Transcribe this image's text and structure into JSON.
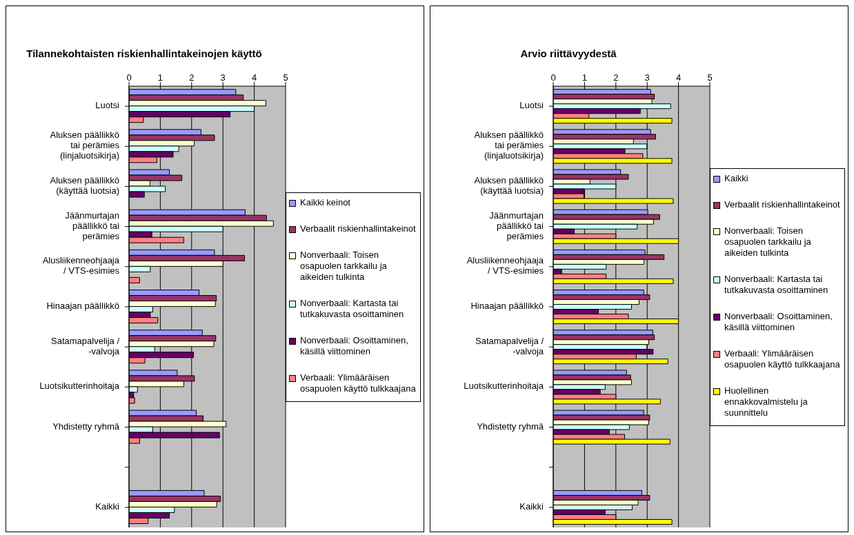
{
  "chart_data": [
    {
      "type": "bar",
      "orientation": "horizontal",
      "title": "Tilannekohtaisten riskienhallintakeinojen käyttö",
      "categories": [
        "Luotsi",
        "Aluksen päällikkö tai perämies (linjaluotsikirja)",
        "Aluksen päällikkö (käyttää luotsia)",
        "Jäänmurtajan päällikkö tai perämies",
        "Alusliikenneohjaaja / VTS-esimies",
        "Hinaajan päällikkö",
        "Satamapalvelija / -valvoja",
        "Luotsikutterinhoitaja",
        "Yhdistetty ryhmä",
        null,
        "Kaikki"
      ],
      "xlim": [
        0,
        5
      ],
      "xticks": [
        0,
        1,
        2,
        3,
        4,
        5
      ],
      "grid": "x",
      "legend": "right",
      "series": [
        {
          "name": "Kaikki keinot",
          "color": "#9999ff",
          "values": [
            3.41,
            2.3,
            1.29,
            3.71,
            2.73,
            2.24,
            2.34,
            1.54,
            2.15,
            null,
            2.4
          ]
        },
        {
          "name": "Verbaalit riskienhallintakeinot",
          "color": "#993366",
          "values": [
            3.65,
            2.73,
            1.69,
            4.39,
            3.69,
            2.79,
            2.77,
            2.09,
            2.37,
            null,
            2.92
          ]
        },
        {
          "name": "Nonverbaali: Toisen osapuolen tarkkailu ja aikeiden tulkinta",
          "color": "#ffffcc",
          "values": [
            4.37,
            2.08,
            0.67,
            4.61,
            3.0,
            2.76,
            2.71,
            1.75,
            3.1,
            null,
            2.8
          ]
        },
        {
          "name": "Nonverbaali: Kartasta tai tutkakuvasta osoittaminen",
          "color": "#ccffff",
          "values": [
            4.0,
            1.59,
            1.16,
            3.0,
            0.68,
            0.76,
            0.82,
            0.27,
            0.76,
            null,
            1.45
          ]
        },
        {
          "name": "Nonverbaali: Osoittaminen, käsillä viittominen",
          "color": "#660066",
          "values": [
            3.23,
            1.41,
            0.49,
            0.73,
            0,
            0.68,
            2.06,
            0.15,
            2.89,
            null,
            1.29
          ]
        },
        {
          "name": "Verbaali: Ylimääräisen osapuolen käyttö tulkkaajana",
          "color": "#ff8080",
          "values": [
            0.46,
            0.89,
            0,
            1.75,
            0.34,
            0.92,
            0.51,
            0.18,
            0.34,
            null,
            0.61
          ]
        }
      ]
    },
    {
      "type": "bar",
      "orientation": "horizontal",
      "title": "Arvio riittävyydestä",
      "categories": [
        "Luotsi",
        "Aluksen päällikkö tai perämies (linjaluotsikirja)",
        "Aluksen päällikkö (käyttää luotsia)",
        "Jäänmurtajan päällikkö tai perämies",
        "Alusliikenneohjaaja / VTS-esimies",
        "Hinaajan päällikkö",
        "Satamapalvelija / -valvoja",
        "Luotsikutterinhoitaja",
        "Yhdistetty ryhmä",
        null,
        "Kaikki"
      ],
      "xlim": [
        0,
        5
      ],
      "xticks": [
        0,
        1,
        2,
        3,
        4,
        5
      ],
      "grid": "x",
      "legend": "right",
      "series": [
        {
          "name": "Kaikki",
          "color": "#9999ff",
          "values": [
            3.11,
            3.11,
            2.15,
            3.02,
            2.93,
            2.89,
            3.18,
            2.34,
            2.89,
            null,
            2.83
          ]
        },
        {
          "name": "Verbaalit riskienhallintakeinot",
          "color": "#993366",
          "values": [
            3.23,
            3.27,
            2.4,
            3.4,
            3.54,
            3.08,
            3.23,
            2.47,
            3.08,
            null,
            3.08
          ]
        },
        {
          "name": "Nonverbaali: Toisen osapuolen tarkkailu ja aikeiden tulkinta",
          "color": "#ffffcc",
          "values": [
            3.15,
            2.56,
            1.17,
            3.2,
            2.9,
            2.74,
            3.05,
            2.5,
            3.05,
            null,
            2.71
          ]
        },
        {
          "name": "Nonverbaali: Kartasta tai tutkakuvasta osoittaminen",
          "color": "#ccffff",
          "values": [
            3.75,
            2.99,
            2.0,
            2.68,
            1.69,
            2.5,
            2.99,
            1.66,
            2.43,
            null,
            2.52
          ]
        },
        {
          "name": "Nonverbaali: Osoittaminen, käsillä viittominen",
          "color": "#660066",
          "values": [
            2.78,
            2.29,
            0.98,
            0.67,
            0.27,
            1.44,
            3.19,
            1.5,
            1.79,
            null,
            1.66
          ]
        },
        {
          "name": "Verbaali: Ylimääräisen osapuolen käyttö tulkkaajana",
          "color": "#ff8080",
          "values": [
            1.14,
            2.86,
            0.98,
            2.0,
            1.69,
            2.4,
            2.65,
            2.0,
            2.28,
            null,
            2.0
          ]
        },
        {
          "name": "Huolellinen ennakkovalmistelu ja suunnittelu",
          "color": "#ffff00",
          "values": [
            3.79,
            3.79,
            3.83,
            4.0,
            3.83,
            4.0,
            3.66,
            3.42,
            3.73,
            null,
            3.79
          ]
        }
      ]
    }
  ]
}
